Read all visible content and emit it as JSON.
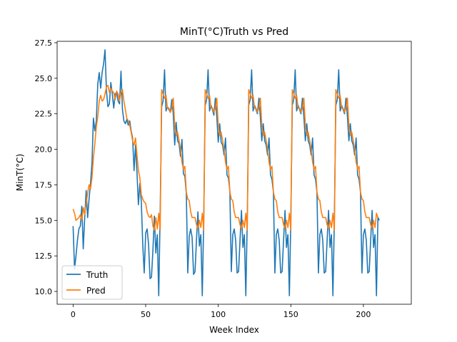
{
  "chart_data": {
    "type": "line",
    "title": "MinT(°C)Truth vs Pred",
    "xlabel": "Week Index",
    "ylabel": "MinT(°C)",
    "xlim": [
      -11,
      233
    ],
    "ylim": [
      9.1,
      27.6
    ],
    "xticks": [
      0,
      50,
      100,
      150,
      200
    ],
    "yticks": [
      10.0,
      12.5,
      15.0,
      17.5,
      20.0,
      22.5,
      25.0,
      27.5
    ],
    "xtick_labels": [
      "0",
      "50",
      "100",
      "150",
      "200"
    ],
    "ytick_labels": [
      "10.0",
      "12.5",
      "15.0",
      "17.5",
      "20.0",
      "22.5",
      "25.0",
      "27.5"
    ],
    "grid": false,
    "legend_position": "lower-left",
    "series": [
      {
        "name": "Truth",
        "color": "#1f77b4",
        "values": [
          14.6,
          11.6,
          12.5,
          13.6,
          14.4,
          14.6,
          16.0,
          13.0,
          15.2,
          17.1,
          15.2,
          16.5,
          17.6,
          19.0,
          22.2,
          21.3,
          22.0,
          24.6,
          25.4,
          24.3,
          25.4,
          26.0,
          27.0,
          24.1,
          23.0,
          23.2,
          24.7,
          23.9,
          22.9,
          23.9,
          24.0,
          23.4,
          23.2,
          25.5,
          22.8,
          22.0,
          21.8,
          22.1,
          21.7,
          22.0,
          21.3,
          20.8,
          18.5,
          20.3,
          18.4,
          16.1,
          17.6,
          16.3,
          13.3,
          11.3,
          14.1,
          14.4,
          13.3,
          10.9,
          11.0,
          12.9,
          15.3,
          12.7,
          14.0,
          9.7,
          15.6,
          23.0,
          23.4,
          25.6,
          22.7,
          23.0,
          22.8,
          22.6,
          23.5,
          22.5,
          20.3,
          21.9,
          20.6,
          20.4,
          19.5,
          20.7,
          18.3,
          18.1,
          16.9,
          11.3,
          13.9,
          14.4,
          13.8,
          11.2,
          11.4,
          13.6,
          15.6,
          13.2,
          14.0,
          9.7,
          15.1,
          23.1,
          23.5,
          25.6,
          22.7,
          23.1,
          22.8,
          22.4,
          23.6,
          22.3,
          20.5,
          21.8,
          20.5,
          20.3,
          19.6,
          20.8,
          18.2,
          18.0,
          17.1,
          11.4,
          14.0,
          14.4,
          13.6,
          11.3,
          11.4,
          13.6,
          15.7,
          13.1,
          14.0,
          9.7,
          15.1,
          23.1,
          23.5,
          25.6,
          22.7,
          23.1,
          22.8,
          22.5,
          23.6,
          22.3,
          20.6,
          21.8,
          20.6,
          20.3,
          19.6,
          20.8,
          18.2,
          17.9,
          17.0,
          11.3,
          14.0,
          14.4,
          13.6,
          11.3,
          11.4,
          13.6,
          15.7,
          13.1,
          14.0,
          9.7,
          15.1,
          23.1,
          23.5,
          25.6,
          22.7,
          23.1,
          22.8,
          22.5,
          23.6,
          22.3,
          20.6,
          21.8,
          20.6,
          20.3,
          19.6,
          20.8,
          18.2,
          17.9,
          17.0,
          11.3,
          14.0,
          14.4,
          13.6,
          11.3,
          11.4,
          13.6,
          15.7,
          13.1,
          14.0,
          9.7,
          15.1,
          23.1,
          23.5,
          25.6,
          22.7,
          23.1,
          22.8,
          22.5,
          23.6,
          22.3,
          20.6,
          21.8,
          20.6,
          20.3,
          19.6,
          20.8,
          18.2,
          17.9,
          17.0,
          11.3,
          14.0,
          14.4,
          13.6,
          11.3,
          11.4,
          13.6,
          15.7,
          13.1,
          14.0,
          9.7,
          15.2,
          15.0
        ]
      },
      {
        "name": "Pred",
        "color": "#ff7f0e",
        "values": [
          15.8,
          15.5,
          15.0,
          15.1,
          15.2,
          15.4,
          15.0,
          15.9,
          15.4,
          16.2,
          16.9,
          17.5,
          17.2,
          18.0,
          19.4,
          20.4,
          21.6,
          22.3,
          23.4,
          23.8,
          23.4,
          23.5,
          23.9,
          24.4,
          24.5,
          24.0,
          24.3,
          24.1,
          24.0,
          23.5,
          24.1,
          23.9,
          23.4,
          24.0,
          24.2,
          23.4,
          22.8,
          22.2,
          22.0,
          21.7,
          21.2,
          20.6,
          20.3,
          20.8,
          19.6,
          18.5,
          18.0,
          16.8,
          16.5,
          16.3,
          16.2,
          15.6,
          15.3,
          15.2,
          15.4,
          14.6,
          14.3,
          15.2,
          14.4,
          15.5,
          14.3,
          24.2,
          23.9,
          23.6,
          23.8,
          22.9,
          22.9,
          22.6,
          22.9,
          23.6,
          21.7,
          21.0,
          21.2,
          20.6,
          20.0,
          19.1,
          18.6,
          18.8,
          17.0,
          16.5,
          16.4,
          15.6,
          15.2,
          15.2,
          15.2,
          14.7,
          14.4,
          15.0,
          14.5,
          15.5,
          14.3,
          24.2,
          23.9,
          23.6,
          23.8,
          22.9,
          22.9,
          22.6,
          22.9,
          23.6,
          21.7,
          21.0,
          21.2,
          20.6,
          20.0,
          19.1,
          18.6,
          18.8,
          17.0,
          16.5,
          16.4,
          15.6,
          15.2,
          15.2,
          15.2,
          14.7,
          14.4,
          15.0,
          14.5,
          15.5,
          14.3,
          24.2,
          23.9,
          23.6,
          23.8,
          22.9,
          22.9,
          22.6,
          22.9,
          23.6,
          21.7,
          21.0,
          21.2,
          20.6,
          20.0,
          19.1,
          18.6,
          18.8,
          17.0,
          16.5,
          16.4,
          15.6,
          15.2,
          15.2,
          15.2,
          14.7,
          14.4,
          15.0,
          14.5,
          15.5,
          14.3,
          24.2,
          23.9,
          23.6,
          23.8,
          22.9,
          22.9,
          22.6,
          22.9,
          23.6,
          21.7,
          21.0,
          21.2,
          20.6,
          20.0,
          19.1,
          18.6,
          18.8,
          17.0,
          16.5,
          16.4,
          15.6,
          15.2,
          15.2,
          15.2,
          14.7,
          14.4,
          15.0,
          14.5,
          15.5,
          14.3,
          24.2,
          23.9,
          23.6,
          23.8,
          22.9,
          22.9,
          22.6,
          22.9,
          23.6,
          21.7,
          21.0,
          21.2,
          20.6,
          20.0,
          19.1,
          18.6,
          18.8,
          17.0,
          16.5,
          16.4,
          15.6,
          15.2,
          15.2,
          15.2,
          14.7,
          14.4,
          15.0,
          14.5,
          15.5,
          15.2
        ]
      }
    ]
  }
}
